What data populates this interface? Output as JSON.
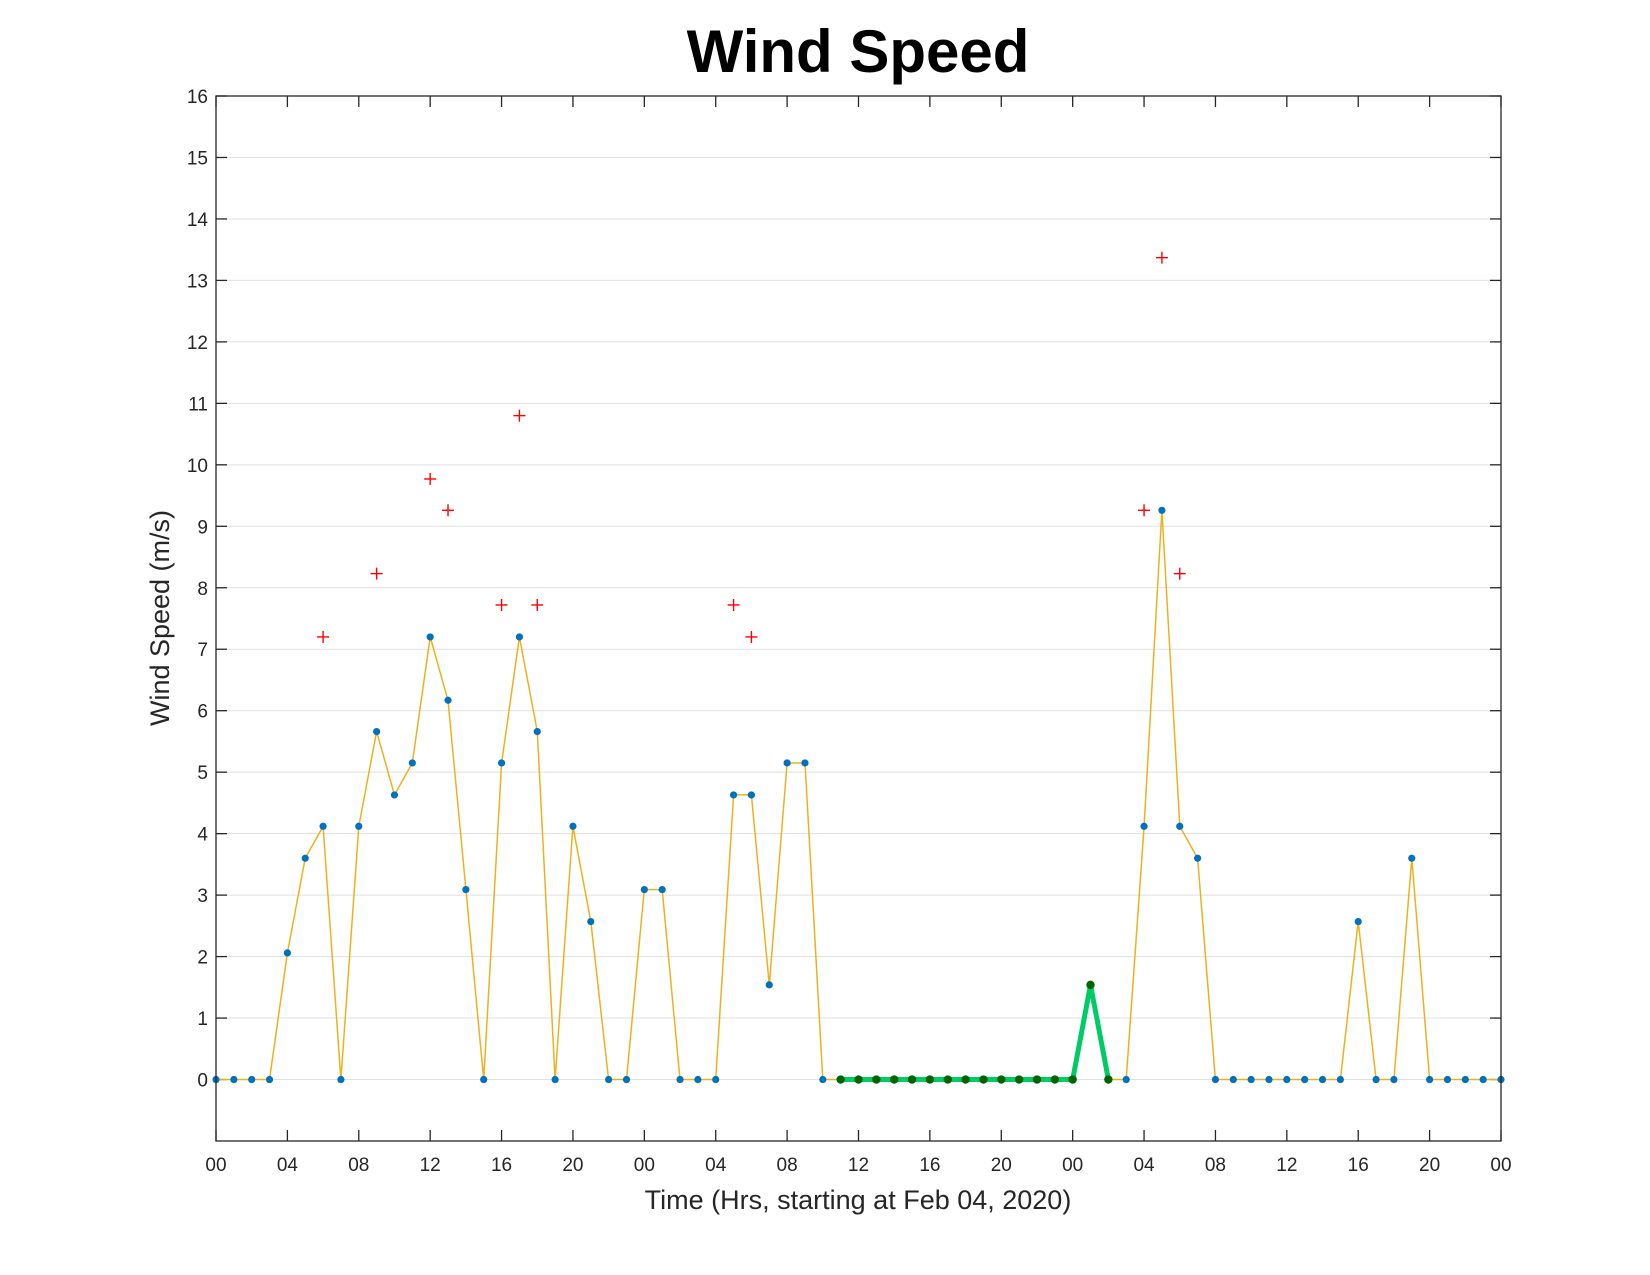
{
  "chart_data": {
    "type": "line",
    "title": "Wind Speed",
    "xlabel": "Time (Hrs, starting at Feb 04, 2020)",
    "ylabel": "Wind Speed (m/s)",
    "ylim": [
      -1,
      16
    ],
    "yticks": [
      0,
      1,
      2,
      3,
      4,
      5,
      6,
      7,
      8,
      9,
      10,
      11,
      12,
      13,
      14,
      15,
      16
    ],
    "xlim": [
      0,
      72
    ],
    "xtick_hours": [
      0,
      4,
      8,
      12,
      16,
      20,
      24,
      28,
      32,
      36,
      40,
      44,
      48,
      52,
      56,
      60,
      64,
      68,
      72
    ],
    "xtick_labels": [
      "00",
      "04",
      "08",
      "12",
      "16",
      "20",
      "00",
      "04",
      "08",
      "12",
      "16",
      "20",
      "00",
      "04",
      "08",
      "12",
      "16",
      "20",
      "00"
    ],
    "grid": true,
    "colors": {
      "line": "#edb120",
      "marker": "#0072bd",
      "gust": "#ff0000",
      "highlight_line": "#00cc66",
      "highlight_marker": "#006400"
    },
    "series": [
      {
        "kind": "wind_speed",
        "x": [
          0,
          1,
          2,
          3,
          4,
          5,
          6,
          7,
          8,
          9,
          10,
          11,
          12,
          13,
          14,
          15,
          16,
          17,
          18,
          19,
          20,
          21,
          22,
          23,
          24,
          25,
          26,
          27,
          28,
          29,
          30,
          31,
          32,
          33,
          34,
          35,
          36,
          37,
          38,
          39,
          40,
          41,
          42,
          43,
          44,
          45,
          46,
          47,
          48,
          49,
          50,
          51,
          52,
          53,
          54,
          55,
          56,
          57,
          58,
          59,
          60,
          61,
          62,
          63,
          64,
          65,
          66,
          67,
          68,
          69,
          70,
          71,
          72
        ],
        "values": [
          0,
          0,
          0,
          0,
          2.06,
          3.6,
          4.12,
          0,
          4.12,
          5.66,
          4.63,
          5.15,
          7.2,
          6.17,
          3.09,
          0,
          5.15,
          7.2,
          5.66,
          0,
          4.12,
          2.57,
          0,
          0,
          3.09,
          3.09,
          0,
          0,
          0,
          4.63,
          4.63,
          1.54,
          5.15,
          5.15,
          0,
          0,
          0,
          0,
          0,
          0,
          0,
          0,
          0,
          0,
          0,
          0,
          0,
          0,
          0,
          1.54,
          0,
          0,
          4.12,
          9.26,
          4.12,
          3.6,
          0,
          0,
          0,
          0,
          0,
          0,
          0,
          0,
          2.57,
          0,
          0,
          3.6,
          0,
          0,
          0,
          0,
          0
        ]
      },
      {
        "kind": "highlight",
        "x": [
          35,
          36,
          37,
          38,
          39,
          40,
          41,
          42,
          43,
          44,
          45,
          46,
          47,
          48,
          49,
          50
        ],
        "values": [
          0,
          0,
          0,
          0,
          0,
          0,
          0,
          0,
          0,
          0,
          0,
          0,
          0,
          0,
          1.54,
          0
        ]
      },
      {
        "kind": "gust",
        "x": [
          6,
          9,
          12,
          13,
          16,
          17,
          18,
          29,
          30,
          52,
          53,
          54
        ],
        "values": [
          7.2,
          8.23,
          9.77,
          9.26,
          7.72,
          10.8,
          7.72,
          7.72,
          7.2,
          9.26,
          13.37,
          8.23
        ]
      }
    ]
  }
}
